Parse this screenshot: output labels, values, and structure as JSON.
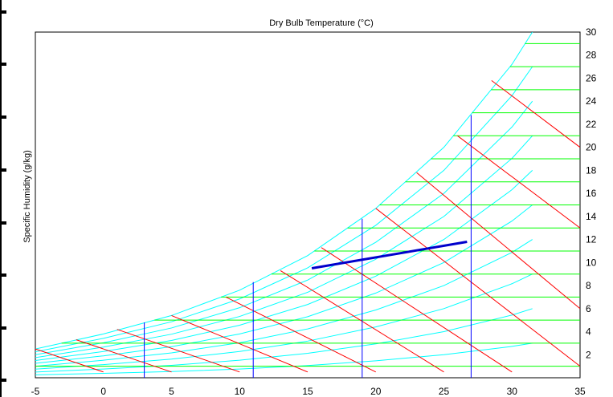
{
  "chart_data": {
    "type": "psychrometric",
    "title": "Dry Bulb Temperature (°C)",
    "xlabel": "",
    "ylabel": "Specific Humidity (g/kg)",
    "x_ticks": [
      "-5",
      "0",
      "5",
      "10",
      "15",
      "20",
      "25",
      "30",
      "35"
    ],
    "y_ticks": [
      "2",
      "4",
      "6",
      "8",
      "10",
      "12",
      "14",
      "16",
      "18",
      "20",
      "22",
      "24",
      "26",
      "28",
      "30"
    ],
    "xlim": [
      -5,
      35
    ],
    "ylim": [
      0,
      30
    ],
    "grid": false,
    "saturation_curve": {
      "color": "#00ffff",
      "relative_humidity_lines": [
        0.1,
        0.2,
        0.3,
        0.4,
        0.5,
        0.6,
        0.7,
        0.8,
        0.9,
        1.0
      ],
      "points": [
        [
          -5,
          2.5
        ],
        [
          0,
          3.8
        ],
        [
          5,
          5.4
        ],
        [
          10,
          7.6
        ],
        [
          15,
          10.6
        ],
        [
          20,
          14.7
        ],
        [
          25,
          20.0
        ],
        [
          30,
          27.2
        ],
        [
          31.5,
          30
        ]
      ]
    },
    "specific_humidity_lines": {
      "color": "#00ff00",
      "values": [
        1,
        3,
        5,
        7,
        9,
        11,
        13,
        15,
        17,
        19,
        21,
        23,
        25,
        27,
        29
      ]
    },
    "wet_bulb_lines": {
      "color": "#ff0000",
      "segments": [
        [
          [
            -5,
            2.5
          ],
          [
            0,
            0.5
          ]
        ],
        [
          [
            -2,
            3.3
          ],
          [
            5,
            0.5
          ]
        ],
        [
          [
            1,
            4.2
          ],
          [
            10,
            0.5
          ]
        ],
        [
          [
            5,
            5.4
          ],
          [
            15,
            0.5
          ]
        ],
        [
          [
            9,
            7.0
          ],
          [
            20,
            0.5
          ]
        ],
        [
          [
            13,
            9.3
          ],
          [
            25,
            0.5
          ]
        ],
        [
          [
            16,
            11.3
          ],
          [
            30,
            0.5
          ]
        ],
        [
          [
            20,
            14.7
          ],
          [
            35,
            1.0
          ]
        ],
        [
          [
            23,
            17.8
          ],
          [
            35,
            6.0
          ]
        ],
        [
          [
            26,
            21.0
          ],
          [
            35,
            13.0
          ]
        ],
        [
          [
            28.5,
            25.8
          ],
          [
            35,
            20.0
          ]
        ]
      ]
    },
    "dry_bulb_lines": {
      "color": "#0000ff",
      "segments": [
        [
          [
            3,
            0
          ],
          [
            3,
            4.8
          ]
        ],
        [
          [
            11,
            0
          ],
          [
            11,
            8.3
          ]
        ],
        [
          [
            19,
            0
          ],
          [
            19,
            13.8
          ]
        ],
        [
          [
            27,
            0
          ],
          [
            27,
            22.8
          ]
        ]
      ]
    },
    "process_line": {
      "color": "#0000cc",
      "points": [
        [
          15.3,
          9.5
        ],
        [
          26.7,
          11.8
        ]
      ]
    }
  }
}
